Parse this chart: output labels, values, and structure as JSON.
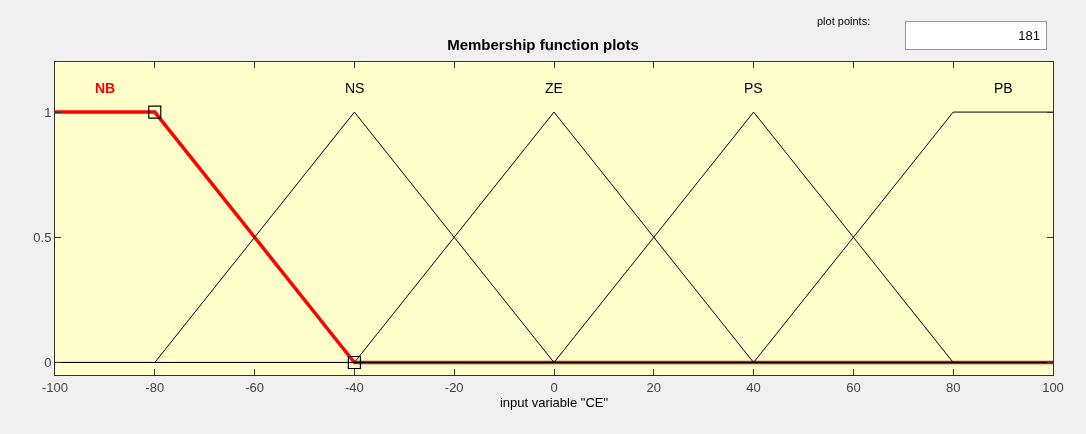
{
  "chart_data": {
    "type": "line",
    "title": "Membership function plots",
    "xlabel": "input variable \"CE\"",
    "xlim": [
      -100,
      100
    ],
    "xticks": [
      -100,
      -80,
      -60,
      -40,
      -20,
      0,
      20,
      40,
      60,
      80,
      100
    ],
    "ylim": [
      -0.05,
      1.2
    ],
    "yticks": [
      0,
      0.5,
      1
    ],
    "grid": false,
    "legend": false,
    "annotations": [
      "plot points:",
      "181"
    ],
    "series": [
      {
        "name": "NB",
        "color": "#ff0000",
        "x": [
          -100,
          -80,
          -40,
          100
        ],
        "values": [
          1,
          1,
          0,
          0
        ]
      },
      {
        "name": "NS",
        "color": "#000000",
        "x": [
          -100,
          -80,
          -40,
          0,
          100
        ],
        "values": [
          0,
          0,
          1,
          0,
          0
        ]
      },
      {
        "name": "ZE",
        "color": "#000000",
        "x": [
          -100,
          -40,
          0,
          40,
          100
        ],
        "values": [
          0,
          0,
          1,
          0,
          0
        ]
      },
      {
        "name": "PS",
        "color": "#000000",
        "x": [
          -100,
          0,
          40,
          80,
          100
        ],
        "values": [
          0,
          0,
          1,
          0,
          0
        ]
      },
      {
        "name": "PB",
        "color": "#000000",
        "x": [
          -100,
          40,
          80,
          100
        ],
        "values": [
          0,
          0,
          1,
          1
        ]
      },
      {
        "type": "scatter",
        "marker": "square",
        "color": "#000000",
        "x": [
          -80,
          -40
        ],
        "values": [
          1,
          0
        ]
      }
    ]
  }
}
